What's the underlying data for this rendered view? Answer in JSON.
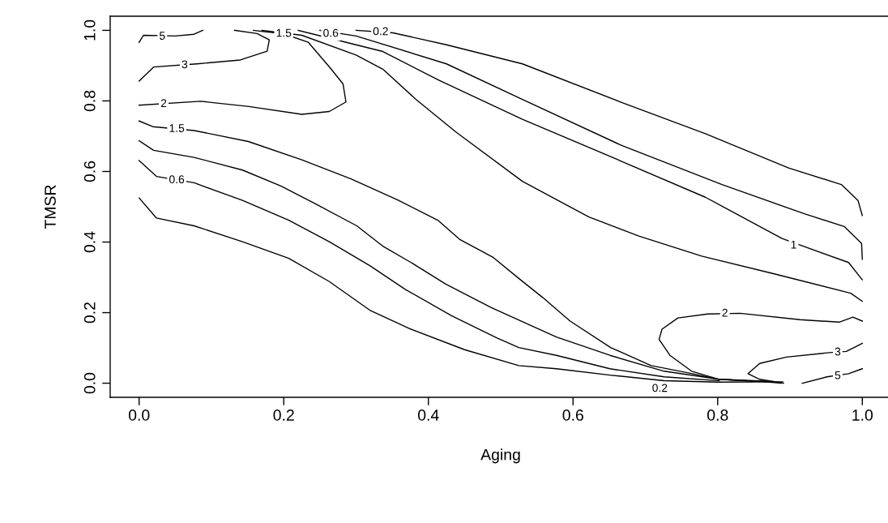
{
  "chart_data": {
    "type": "line",
    "xlabel": "Aging",
    "ylabel": "TMSR",
    "xlim": [
      -0.04,
      1.04
    ],
    "ylim": [
      -0.04,
      1.04
    ],
    "xticks": [
      {
        "value": 0,
        "label": "0.0"
      },
      {
        "value": 0.2,
        "label": "0.2"
      },
      {
        "value": 0.4,
        "label": "0.4"
      },
      {
        "value": 0.6,
        "label": "0.6"
      },
      {
        "value": 0.8,
        "label": "0.8"
      },
      {
        "value": 1,
        "label": "1.0"
      }
    ],
    "yticks": [
      {
        "value": 0,
        "label": "0.0"
      },
      {
        "value": 0.2,
        "label": "0.2"
      },
      {
        "value": 0.4,
        "label": "0.4"
      },
      {
        "value": 0.6,
        "label": "0.6"
      },
      {
        "value": 0.8,
        "label": "0.8"
      },
      {
        "value": 1,
        "label": "1.0"
      }
    ],
    "grid": false,
    "legend": false,
    "marker": "none",
    "line_style": "solid",
    "series": [
      {
        "color": "#000000",
        "x": [
          0,
          0.006,
          0.05,
          0.076,
          0.088
        ],
        "values": [
          0.966,
          0.986,
          0.984,
          0.989,
          1.0
        ]
      },
      {
        "color": "#000000",
        "x": [
          0,
          0.02,
          0.08,
          0.14,
          0.177,
          0.18,
          0.163,
          0.132
        ],
        "values": [
          0.856,
          0.896,
          0.905,
          0.916,
          0.941,
          0.973,
          0.991,
          1.0
        ]
      },
      {
        "color": "#000000",
        "x": [
          0,
          0.085,
          0.152,
          0.225,
          0.263,
          0.286,
          0.282,
          0.264,
          0.234,
          0.2,
          0.158
        ],
        "values": [
          0.788,
          0.799,
          0.784,
          0.762,
          0.77,
          0.797,
          0.848,
          0.894,
          0.966,
          0.99,
          1.0
        ]
      },
      {
        "color": "#000000",
        "x": [
          0.17,
          0.225,
          0.3,
          0.337,
          0.383,
          0.438,
          0.53,
          0.622,
          0.691,
          0.778,
          0.876,
          0.984,
          1.0
        ],
        "values": [
          1.0,
          0.986,
          0.93,
          0.89,
          0.804,
          0.712,
          0.572,
          0.471,
          0.417,
          0.36,
          0.311,
          0.255,
          0.232
        ]
      },
      {
        "color": "#000000",
        "x": [
          0.22,
          0.3,
          0.337,
          0.415,
          0.53,
          0.668,
          0.783,
          0.889,
          0.981,
          1.0
        ],
        "values": [
          1.0,
          0.959,
          0.94,
          0.858,
          0.748,
          0.628,
          0.527,
          0.41,
          0.342,
          0.293
        ]
      },
      {
        "color": "#000000",
        "x": [
          0.25,
          0.3,
          0.425,
          0.53,
          0.668,
          0.806,
          0.92,
          0.975,
          0.999,
          1.0
        ],
        "values": [
          1.0,
          0.984,
          0.905,
          0.804,
          0.673,
          0.563,
          0.48,
          0.444,
          0.396,
          0.351
        ]
      },
      {
        "color": "#000000",
        "x": [
          0.3,
          0.351,
          0.425,
          0.53,
          0.668,
          0.783,
          0.898,
          0.971,
          0.994,
          1.0
        ],
        "values": [
          1.0,
          0.993,
          0.959,
          0.905,
          0.795,
          0.707,
          0.61,
          0.563,
          0.518,
          0.475
        ]
      },
      {
        "color": "#000000",
        "x": [
          0,
          0.019,
          0.076,
          0.151,
          0.225,
          0.293,
          0.357,
          0.413,
          0.443,
          0.49,
          0.525,
          0.558,
          0.596,
          0.652,
          0.708,
          0.765,
          0.801,
          0.858
        ],
        "values": [
          0.743,
          0.727,
          0.716,
          0.685,
          0.633,
          0.579,
          0.52,
          0.462,
          0.408,
          0.356,
          0.297,
          0.243,
          0.176,
          0.101,
          0.05,
          0.027,
          0.011,
          0.005
        ]
      },
      {
        "color": "#000000",
        "x": [
          0,
          0.02,
          0.076,
          0.143,
          0.196,
          0.245,
          0.301,
          0.338,
          0.376,
          0.424,
          0.487,
          0.577,
          0.651,
          0.726,
          0.802,
          0.876
        ],
        "values": [
          0.687,
          0.66,
          0.64,
          0.604,
          0.559,
          0.507,
          0.446,
          0.387,
          0.342,
          0.281,
          0.214,
          0.131,
          0.079,
          0.034,
          0.011,
          0.005
        ]
      },
      {
        "color": "#000000",
        "x": [
          0,
          0.024,
          0.076,
          0.143,
          0.207,
          0.263,
          0.319,
          0.368,
          0.432,
          0.495,
          0.525,
          0.577,
          0.651,
          0.726,
          0.802
        ],
        "values": [
          0.631,
          0.586,
          0.568,
          0.518,
          0.462,
          0.401,
          0.333,
          0.266,
          0.191,
          0.128,
          0.101,
          0.079,
          0.041,
          0.018,
          0.007
        ]
      },
      {
        "color": "#000000",
        "x": [
          0,
          0.024,
          0.076,
          0.143,
          0.207,
          0.263,
          0.319,
          0.376,
          0.45,
          0.525,
          0.577,
          0.651,
          0.726,
          0.8,
          0.89
        ],
        "values": [
          0.525,
          0.468,
          0.446,
          0.401,
          0.354,
          0.288,
          0.207,
          0.153,
          0.095,
          0.05,
          0.041,
          0.023,
          0.007,
          0.003,
          0.004
        ]
      },
      {
        "color": "#000000",
        "x": [
          0.888,
          0.858,
          0.802,
          0.764,
          0.734,
          0.719,
          0.723,
          0.745,
          0.786,
          0.831,
          0.914,
          0.968,
          0.987,
          1.0
        ],
        "values": [
          0.0,
          0.005,
          0.011,
          0.034,
          0.079,
          0.124,
          0.153,
          0.185,
          0.196,
          0.198,
          0.18,
          0.173,
          0.187,
          0.176
        ]
      },
      {
        "color": "#000000",
        "x": [
          0.891,
          0.858,
          0.842,
          0.858,
          0.895,
          0.951,
          0.978,
          1.0
        ],
        "values": [
          0.0,
          0.011,
          0.027,
          0.056,
          0.074,
          0.086,
          0.09,
          0.113
        ]
      },
      {
        "color": "#000000",
        "x": [
          0.917,
          0.951,
          0.981,
          1.0
        ],
        "values": [
          0.0,
          0.018,
          0.027,
          0.041
        ]
      }
    ],
    "annotations": [
      {
        "text": "5",
        "x": 0.032,
        "y": 0.982
      },
      {
        "text": "3",
        "x": 0.063,
        "y": 0.901
      },
      {
        "text": "2",
        "x": 0.034,
        "y": 0.791
      },
      {
        "text": "1.5",
        "x": 0.052,
        "y": 0.72
      },
      {
        "text": "0.6",
        "x": 0.052,
        "y": 0.575
      },
      {
        "text": "1.5",
        "x": 0.2,
        "y": 0.99
      },
      {
        "text": "0.6",
        "x": 0.265,
        "y": 0.99
      },
      {
        "text": "0.2",
        "x": 0.334,
        "y": 0.995
      },
      {
        "text": "1",
        "x": 0.905,
        "y": 0.39
      },
      {
        "text": "2",
        "x": 0.81,
        "y": 0.197
      },
      {
        "text": "3",
        "x": 0.966,
        "y": 0.087
      },
      {
        "text": "5",
        "x": 0.966,
        "y": 0.02
      },
      {
        "text": "0.2",
        "x": 0.72,
        "y": -0.016
      }
    ]
  }
}
